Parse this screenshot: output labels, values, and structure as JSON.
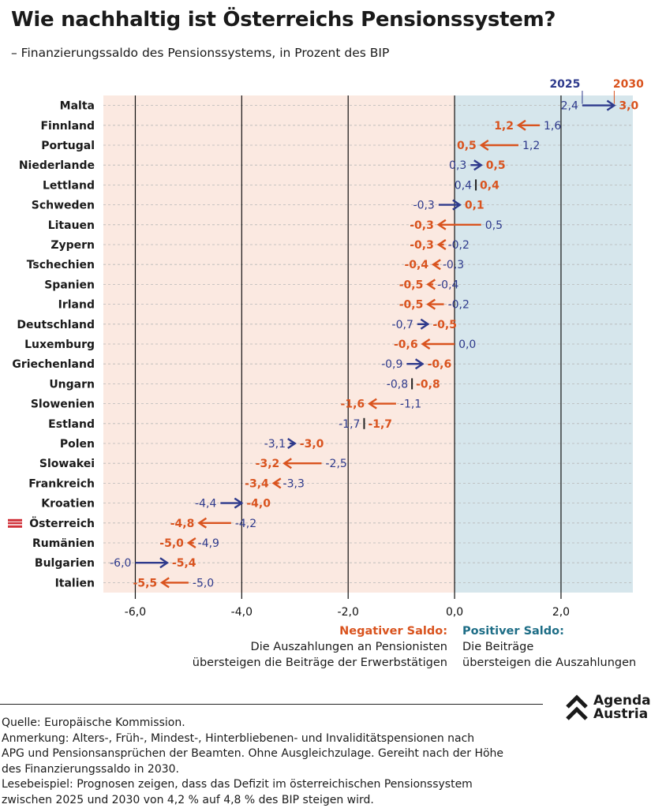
{
  "header": {
    "title": "Wie nachhaltig ist Österreichs Pensionssystem?",
    "subtitle": "– Finanzierungssaldo des Pensionssystems, in Prozent des BIP"
  },
  "colors": {
    "year_2025": "#2e3a8c",
    "year_2030": "#d9531e",
    "negative_bg": "#fbe9e1",
    "positive_bg": "#d6e6ec",
    "flag_red": "#d0323a"
  },
  "chart_data": {
    "type": "dumbbell-arrow",
    "series": [
      {
        "name": "2025",
        "values": [
          2.4,
          1.6,
          1.2,
          0.3,
          0.4,
          -0.3,
          0.5,
          -0.2,
          -0.3,
          -0.4,
          -0.2,
          -0.7,
          0.0,
          -0.9,
          -0.8,
          -1.1,
          -1.7,
          -3.1,
          -2.5,
          -3.3,
          -4.4,
          -4.2,
          -4.9,
          -6.0,
          -5.0
        ]
      },
      {
        "name": "2030",
        "values": [
          3.0,
          1.2,
          0.5,
          0.5,
          0.4,
          0.1,
          -0.3,
          -0.3,
          -0.4,
          -0.5,
          -0.5,
          -0.5,
          -0.6,
          -0.6,
          -0.8,
          -1.6,
          -1.7,
          -3.0,
          -3.2,
          -3.4,
          -4.0,
          -4.8,
          -5.0,
          -5.4,
          -5.5
        ]
      }
    ],
    "categories": [
      "Malta",
      "Finnland",
      "Portugal",
      "Niederlande",
      "Lettland",
      "Schweden",
      "Litauen",
      "Zypern",
      "Tschechien",
      "Spanien",
      "Irland",
      "Deutschland",
      "Luxemburg",
      "Griechenland",
      "Ungarn",
      "Slowenien",
      "Estland",
      "Polen",
      "Slowakei",
      "Frankreich",
      "Kroatien",
      "Österreich",
      "Rumänien",
      "Bulgarien",
      "Italien"
    ],
    "labels_2025": [
      "2,4",
      "1,6",
      "1,2",
      "0,3",
      "0,4",
      "-0,3",
      "0,5",
      "-0,2",
      "-0,3",
      "-0,4",
      "-0,2",
      "-0,7",
      "0,0",
      "-0,9",
      "-0,8",
      "-1,1",
      "-1,7",
      "-3,1",
      "-2,5",
      "-3,3",
      "-4,4",
      "-4,2",
      "-4,9",
      "-6,0",
      "-5,0"
    ],
    "labels_2030": [
      "3,0",
      "1,2",
      "0,5",
      "0,5",
      "0,4",
      "0,1",
      "-0,3",
      "-0,3",
      "-0,4",
      "-0,5",
      "-0,5",
      "-0,5",
      "-0,6",
      "-0,6",
      "-0,8",
      "-1,6",
      "-1,7",
      "-3,0",
      "-3,2",
      "-3,4",
      "-4,0",
      "-4,8",
      "-5,0",
      "-5,4",
      "-5,5"
    ],
    "highlight": "Österreich",
    "xlim": [
      -6.6,
      3.35
    ],
    "xticks": [
      -6,
      -4,
      -2,
      0,
      2
    ],
    "xtick_labels": [
      "-6,0",
      "-4,0",
      "-2,0",
      "0,0",
      "2,0"
    ],
    "year_labels": [
      "2025",
      "2030"
    ],
    "grid": true
  },
  "legend": {
    "negative_head": "Negativer Saldo:",
    "negative_line1": "Die Auszahlungen an Pensionisten",
    "negative_line2": "übersteigen die Beiträge der Erwerbstätigen",
    "positive_head": "Positiver Saldo:",
    "positive_line1": "Die Beiträge",
    "positive_line2": "übersteigen die Auszahlungen"
  },
  "footer": {
    "source": "Quelle: Europäische Kommission.",
    "note1": "Anmerkung: Alters-, Früh-, Mindest-, Hinterbliebenen- und Invaliditätspensionen nach",
    "note2": "APG und Pensionsansprüchen der Beamten. Ohne Ausgleichzulage. Gereiht nach der Höhe",
    "note3": "des Finanzierungssaldo in 2030.",
    "example1": "Lesebeispiel: Prognosen zeigen, dass das Defizit im österreichischen Pensionssystem",
    "example2": "zwischen 2025 und 2030 von 4,2 % auf 4,8 % des BIP steigen wird."
  },
  "logo": {
    "line1": "Agenda",
    "line2": "Austria"
  }
}
